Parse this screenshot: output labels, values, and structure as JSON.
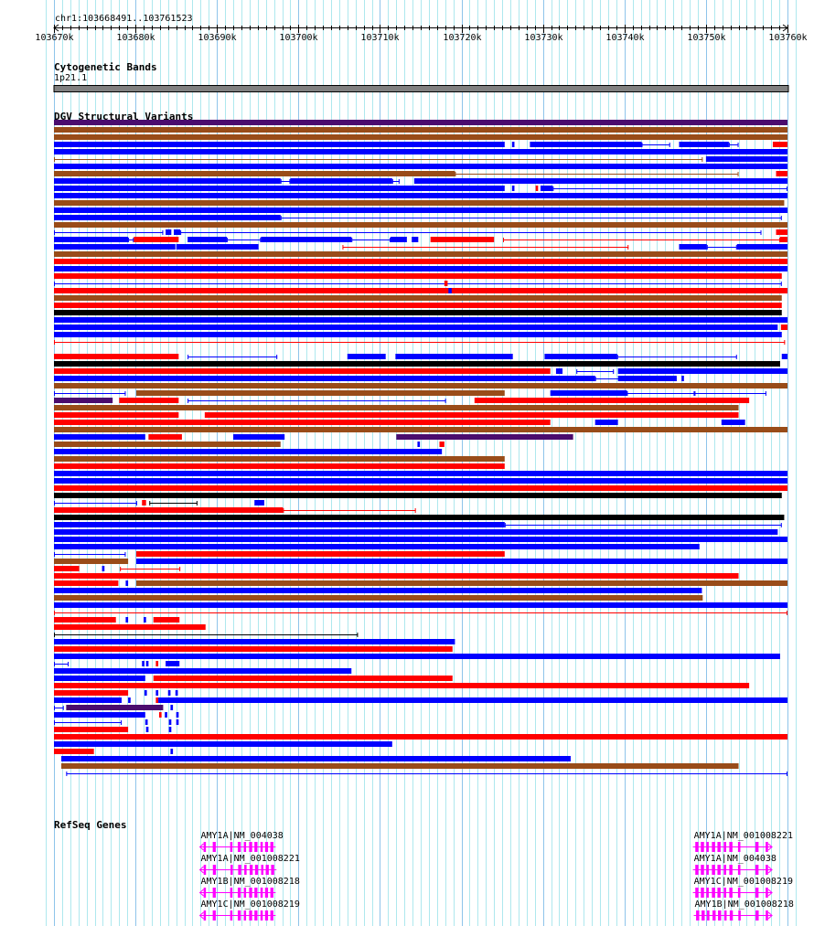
{
  "region_label": "chr1:103668491..103761523",
  "axis": {
    "start_kb": 103670,
    "end_kb": 103760,
    "label_step_kb": 10,
    "tick_step_kb": 1,
    "tick_suffix": "k"
  },
  "tracks": {
    "cyto": {
      "title": "Cytogenetic Bands",
      "band": "1p21.1",
      "color": "#808080"
    },
    "dgv": {
      "title": "DGV Structural Variants"
    },
    "refseq": {
      "title": "RefSeq Genes"
    }
  },
  "colors": {
    "B": "#0000ff",
    "R": "#ff0000",
    "N": "#994c19",
    "P": "#4b0c6e",
    "K": "#000000",
    "gene": "#ff00ff",
    "grid": "#aee8ee",
    "grid_major": "#8ec4ea"
  },
  "variants_note": "segments: [color, start_kb_offset, end_kb_offset, thick(1)/thin(0)], offsets relative to axis start",
  "variants": [
    [
      [
        "P",
        0,
        90,
        1
      ]
    ],
    [
      [
        "N",
        0,
        90,
        1
      ]
    ],
    [
      [
        "N",
        0,
        90,
        1
      ]
    ],
    [
      [
        "B",
        0,
        55.3,
        1
      ],
      [
        "B",
        56.2,
        56.5,
        1
      ],
      [
        "B",
        58.4,
        72.1,
        1
      ],
      [
        "B",
        72.1,
        75.6,
        0
      ],
      [
        "B",
        76.7,
        82.8,
        1
      ],
      [
        "B",
        82.8,
        84,
        0
      ],
      [
        "R",
        88.2,
        90,
        1
      ]
    ],
    [
      [
        "B",
        0,
        90,
        1
      ]
    ],
    [
      [
        "N",
        0,
        79.6,
        0
      ],
      [
        "B",
        80,
        90,
        1
      ]
    ],
    [
      [
        "B",
        0,
        90,
        1
      ]
    ],
    [
      [
        "N",
        0,
        49.2,
        1
      ],
      [
        "N",
        49.2,
        84,
        0
      ],
      [
        "R",
        88.6,
        90,
        1
      ]
    ],
    [
      [
        "B",
        0,
        27.8,
        1
      ],
      [
        "B",
        27.8,
        29,
        0
      ],
      [
        "B",
        29,
        41.5,
        1
      ],
      [
        "B",
        41.5,
        42.4,
        0
      ],
      [
        "B",
        44.2,
        90,
        1
      ]
    ],
    [
      [
        "B",
        0,
        55.3,
        1
      ],
      [
        "B",
        56.2,
        56.5,
        1
      ],
      [
        "R",
        59.1,
        59.4,
        1
      ],
      [
        "B",
        59.7,
        61.2,
        1
      ],
      [
        "B",
        61.2,
        90,
        0
      ]
    ],
    [
      [
        "B",
        0,
        90,
        1
      ]
    ],
    [
      [
        "N",
        0,
        89.6,
        1
      ]
    ],
    [
      [
        "B",
        0,
        90,
        1
      ]
    ],
    [
      [
        "B",
        0,
        27.8,
        1
      ],
      [
        "B",
        27.8,
        89.3,
        0
      ]
    ],
    [
      [
        "N",
        0,
        90,
        1
      ]
    ],
    [
      [
        "B",
        0,
        13.4,
        0
      ],
      [
        "B",
        13.7,
        14.4,
        1
      ],
      [
        "B",
        14.7,
        15.5,
        1
      ],
      [
        "B",
        15.5,
        86.8,
        0
      ],
      [
        "R",
        88.6,
        90,
        1
      ]
    ],
    [
      [
        "B",
        0,
        9.1,
        1
      ],
      [
        "B",
        9.1,
        9.8,
        0
      ],
      [
        "R",
        9.8,
        15.3,
        1
      ],
      [
        "B",
        16.4,
        21.2,
        1
      ],
      [
        "B",
        21.2,
        25.4,
        0
      ],
      [
        "B",
        25.4,
        36.5,
        1
      ],
      [
        "B",
        36.5,
        41.3,
        0
      ],
      [
        "B",
        41.3,
        43.3,
        1
      ],
      [
        "B",
        43.9,
        44.7,
        1
      ],
      [
        "R",
        46.2,
        54,
        1
      ],
      [
        "R",
        55.1,
        89.1,
        0
      ],
      [
        "R",
        89.1,
        90,
        1
      ]
    ],
    [
      [
        "B",
        0,
        14.9,
        1
      ],
      [
        "B",
        15,
        25.1,
        1
      ],
      [
        "R",
        35.4,
        70.5,
        0
      ],
      [
        "B",
        76.7,
        80.1,
        1
      ],
      [
        "B",
        80.1,
        83.8,
        0
      ],
      [
        "B",
        83.8,
        90,
        1
      ]
    ],
    [
      [
        "N",
        0,
        90,
        1
      ]
    ],
    [
      [
        "R",
        0,
        90,
        1
      ]
    ],
    [
      [
        "B",
        0,
        90,
        1
      ]
    ],
    [
      [
        "R",
        0,
        89.3,
        1
      ]
    ],
    [
      [
        "B",
        0,
        89.3,
        0
      ],
      [
        "R",
        47.9,
        48.3,
        1
      ]
    ],
    [
      [
        "R",
        0,
        90,
        1
      ],
      [
        "B",
        48.4,
        48.8,
        1
      ]
    ],
    [
      [
        "N",
        0,
        89.3,
        1
      ]
    ],
    [
      [
        "R",
        0,
        89.3,
        1
      ]
    ],
    [
      [
        "K",
        0,
        89.3,
        1
      ]
    ],
    [
      [
        "B",
        0,
        90,
        1
      ]
    ],
    [
      [
        "B",
        0,
        88.8,
        1
      ],
      [
        "R",
        89.2,
        90,
        1
      ]
    ],
    [
      [
        "B",
        0,
        89.3,
        1
      ]
    ],
    [
      [
        "R",
        0,
        89.7,
        0
      ]
    ],
    [],
    [
      [
        "R",
        0,
        15.3,
        1
      ],
      [
        "B",
        16.4,
        27.4,
        0
      ],
      [
        "B",
        36,
        40.7,
        1
      ],
      [
        "B",
        41.9,
        56.3,
        1
      ],
      [
        "B",
        60.2,
        69.1,
        1
      ],
      [
        "B",
        69.1,
        83.8,
        0
      ],
      [
        "B",
        89.3,
        90,
        1
      ]
    ],
    [
      [
        "K",
        0,
        89.1,
        1
      ]
    ],
    [
      [
        "R",
        0,
        60.9,
        1
      ],
      [
        "B",
        61.6,
        62.4,
        1
      ],
      [
        "B",
        64.1,
        68.7,
        0
      ],
      [
        "B",
        69.2,
        90,
        1
      ]
    ],
    [
      [
        "B",
        0,
        66.4,
        1
      ],
      [
        "B",
        66.4,
        76.4,
        0
      ],
      [
        "B",
        69.2,
        76.4,
        1
      ],
      [
        "B",
        77,
        77.3,
        1
      ]
    ],
    [
      [
        "N",
        0,
        90,
        1
      ]
    ],
    [
      [
        "B",
        0,
        8.8,
        0
      ],
      [
        "N",
        10.1,
        55.3,
        1
      ],
      [
        "B",
        60.9,
        70.3,
        1
      ],
      [
        "B",
        70.3,
        78.6,
        0
      ],
      [
        "B",
        78.6,
        87.4,
        0
      ]
    ],
    [
      [
        "P",
        0,
        7.2,
        1
      ],
      [
        "R",
        8,
        15.3,
        1
      ],
      [
        "B",
        16.4,
        48.1,
        0
      ],
      [
        "R",
        51.6,
        85.3,
        1
      ]
    ],
    [
      [
        "N",
        0,
        84,
        1
      ]
    ],
    [
      [
        "R",
        0,
        15.3,
        1
      ],
      [
        "R",
        18.5,
        84,
        1
      ]
    ],
    [
      [
        "R",
        0,
        60.9,
        1
      ],
      [
        "B",
        66.4,
        69.2,
        1
      ],
      [
        "B",
        81.9,
        84.8,
        1
      ]
    ],
    [
      [
        "N",
        0,
        90,
        1
      ]
    ],
    [
      [
        "B",
        0,
        11.2,
        1
      ],
      [
        "R",
        11.6,
        15.7,
        1
      ],
      [
        "B",
        22,
        28.3,
        1
      ],
      [
        "P",
        42,
        63.7,
        1
      ]
    ],
    [
      [
        "N",
        0,
        27.8,
        1
      ],
      [
        "B",
        44.6,
        44.9,
        1
      ],
      [
        "R",
        47.3,
        47.9,
        1
      ]
    ],
    [
      [
        "B",
        0,
        47.6,
        1
      ]
    ],
    [
      [
        "N",
        0,
        55.3,
        1
      ]
    ],
    [
      [
        "R",
        0,
        55.3,
        1
      ]
    ],
    [
      [
        "B",
        0,
        90,
        1
      ]
    ],
    [
      [
        "B",
        0,
        90,
        1
      ]
    ],
    [
      [
        "R",
        0,
        90,
        1
      ]
    ],
    [
      [
        "K",
        0,
        89.3,
        1
      ]
    ],
    [
      [
        "B",
        0,
        10.2,
        0
      ],
      [
        "R",
        10.8,
        11.3,
        1
      ],
      [
        "K",
        11.7,
        17.6,
        0
      ],
      [
        "B",
        24.6,
        25.8,
        1
      ]
    ],
    [
      [
        "R",
        0,
        28.1,
        1
      ],
      [
        "R",
        28.1,
        44.4,
        0
      ]
    ],
    [
      [
        "K",
        0,
        89.6,
        1
      ]
    ],
    [
      [
        "B",
        0,
        55.3,
        1
      ],
      [
        "B",
        55.3,
        89.3,
        0
      ]
    ],
    [
      [
        "B",
        0,
        88.8,
        1
      ]
    ],
    [
      [
        "B",
        0,
        90,
        1
      ]
    ],
    [
      [
        "B",
        0,
        79.2,
        1
      ]
    ],
    [
      [
        "B",
        0,
        8.8,
        0
      ],
      [
        "R",
        10.1,
        55.3,
        1
      ]
    ],
    [
      [
        "N",
        0,
        9.1,
        1
      ],
      [
        "B",
        10.1,
        90,
        1
      ]
    ],
    [
      [
        "R",
        0,
        3.1,
        1
      ],
      [
        "B",
        5.9,
        6.2,
        1
      ],
      [
        "R",
        8.1,
        15.5,
        0
      ]
    ],
    [
      [
        "R",
        0,
        84,
        1
      ]
    ],
    [
      [
        "R",
        0,
        7.9,
        1
      ],
      [
        "B",
        8.8,
        9.1,
        1
      ],
      [
        "N",
        10.1,
        90,
        1
      ]
    ],
    [
      [
        "B",
        0,
        79.5,
        1
      ]
    ],
    [
      [
        "N",
        0,
        79.6,
        1
      ]
    ],
    [
      [
        "B",
        0,
        90,
        1
      ]
    ],
    [
      [
        "R",
        0,
        90,
        0
      ]
    ],
    [
      [
        "R",
        0,
        7.6,
        1
      ],
      [
        "B",
        8.8,
        9.1,
        1
      ],
      [
        "B",
        11,
        11.3,
        1
      ],
      [
        "R",
        12.2,
        15.4,
        1
      ]
    ],
    [
      [
        "R",
        0,
        18.6,
        1
      ]
    ],
    [
      [
        "K",
        0,
        37.3,
        0
      ]
    ],
    [
      [
        "B",
        0,
        49.2,
        1
      ]
    ],
    [
      [
        "R",
        0,
        48.9,
        1
      ]
    ],
    [
      [
        "B",
        0,
        89.1,
        1
      ]
    ],
    [
      [
        "B",
        0,
        1.8,
        0
      ],
      [
        "B",
        10.8,
        11.1,
        1
      ],
      [
        "B",
        11.3,
        11.6,
        1
      ],
      [
        "R",
        12.5,
        12.8,
        1
      ],
      [
        "B",
        13.7,
        15.4,
        1
      ]
    ],
    [
      [
        "B",
        0,
        36.5,
        1
      ]
    ],
    [
      [
        "B",
        0,
        11.2,
        1
      ],
      [
        "R",
        12.2,
        48.9,
        1
      ]
    ],
    [
      [
        "R",
        0,
        85.3,
        1
      ]
    ],
    [
      [
        "R",
        0,
        9.1,
        1
      ],
      [
        "B",
        11.1,
        11.4,
        1
      ],
      [
        "B",
        12.5,
        12.8,
        1
      ],
      [
        "B",
        14,
        14.3,
        1
      ],
      [
        "B",
        14.9,
        15.2,
        1
      ]
    ],
    [
      [
        "B",
        0,
        8.3,
        1
      ],
      [
        "B",
        9.1,
        9.4,
        1
      ],
      [
        "R",
        12.5,
        12.8,
        1
      ],
      [
        "B",
        12.8,
        90,
        1
      ]
    ],
    [
      [
        "B",
        0,
        1.2,
        0
      ],
      [
        "P",
        1.5,
        13.4,
        1
      ],
      [
        "B",
        14.3,
        14.6,
        1
      ]
    ],
    [
      [
        "B",
        0,
        11.2,
        1
      ],
      [
        "R",
        12.9,
        13.2,
        1
      ],
      [
        "B",
        13.6,
        13.9,
        1
      ],
      [
        "B",
        15,
        15.3,
        1
      ]
    ],
    [
      [
        "B",
        0,
        8.3,
        0
      ],
      [
        "B",
        11.2,
        11.5,
        1
      ],
      [
        "B",
        14.1,
        14.4,
        1
      ],
      [
        "B",
        15,
        15.3,
        1
      ]
    ],
    [
      [
        "R",
        0,
        9.1,
        1
      ],
      [
        "B",
        11.3,
        11.6,
        1
      ],
      [
        "B",
        14.1,
        14.4,
        1
      ]
    ],
    [
      [
        "R",
        0,
        90,
        1
      ]
    ],
    [
      [
        "B",
        0,
        41.5,
        1
      ]
    ],
    [
      [
        "R",
        0,
        4.9,
        1
      ],
      [
        "B",
        14.3,
        14.6,
        1
      ]
    ],
    [
      [
        "B",
        0.9,
        63.4,
        1
      ]
    ],
    [
      [
        "N",
        0.9,
        84,
        1
      ]
    ],
    [
      [
        "B",
        1.5,
        90,
        0
      ]
    ]
  ],
  "genes": [
    {
      "label": "AMY1A|NM_004038",
      "start": 17.9,
      "end": 27.2,
      "strand": "-",
      "group": 0,
      "row": 0
    },
    {
      "label": "AMY1A|NM_001008221",
      "start": 17.9,
      "end": 27.3,
      "strand": "-",
      "group": 0,
      "row": 1
    },
    {
      "label": "AMY1B|NM_001008218",
      "start": 17.9,
      "end": 27.2,
      "strand": "-",
      "group": 0,
      "row": 2
    },
    {
      "label": "AMY1C|NM_001008219",
      "start": 17.9,
      "end": 27.2,
      "strand": "-",
      "group": 0,
      "row": 3
    },
    {
      "label": "AMY1A|NM_001008221",
      "start": 78.4,
      "end": 88.1,
      "strand": "+",
      "group": 1,
      "row": 0
    },
    {
      "label": "AMY1A|NM_004038",
      "start": 78.4,
      "end": 88.1,
      "strand": "+",
      "group": 1,
      "row": 1
    },
    {
      "label": "AMY1C|NM_001008219",
      "start": 78.4,
      "end": 88.1,
      "strand": "+",
      "group": 1,
      "row": 2
    },
    {
      "label": "AMY1B|NM_001008218",
      "start": 78.5,
      "end": 88.1,
      "strand": "+",
      "group": 1,
      "row": 3
    }
  ],
  "exons_rel": [
    [
      0.05,
      0.08
    ],
    [
      0.17,
      0.21
    ],
    [
      0.4,
      0.43
    ],
    [
      0.5,
      0.54
    ],
    [
      0.58,
      0.61
    ],
    [
      0.65,
      0.69
    ],
    [
      0.72,
      0.76
    ],
    [
      0.8,
      0.83
    ],
    [
      0.86,
      0.9
    ],
    [
      0.93,
      0.97
    ]
  ]
}
